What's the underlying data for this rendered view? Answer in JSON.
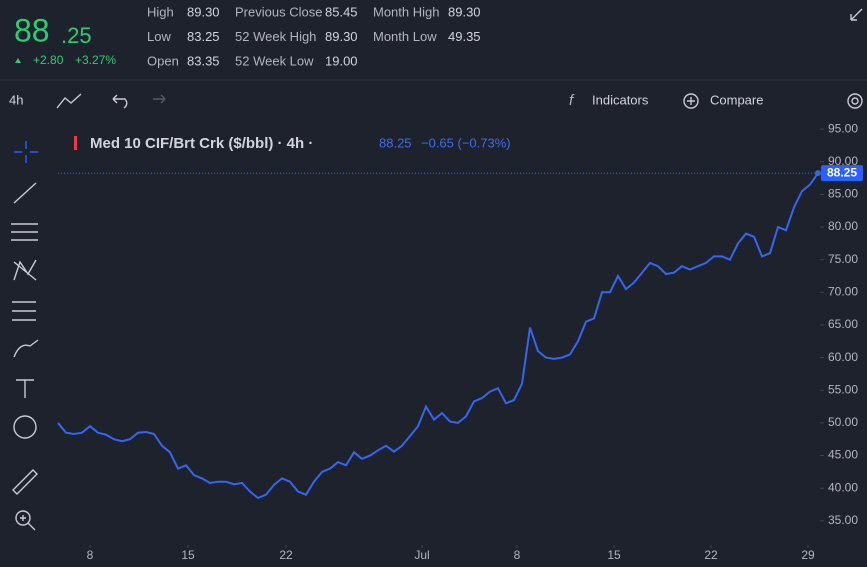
{
  "header": {
    "price_int": "88",
    "price_dec": ".25",
    "change": "+2.80",
    "change_pct": "+3.27%",
    "stats": [
      {
        "label": "High",
        "value": "89.30"
      },
      {
        "label": "Low",
        "value": "83.25"
      },
      {
        "label": "Open",
        "value": "83.35"
      },
      {
        "label": "Previous Close",
        "value": "85.45"
      },
      {
        "label": "52 Week High",
        "value": "89.30"
      },
      {
        "label": "52 Week Low",
        "value": "19.00"
      },
      {
        "label": "Month High",
        "value": "89.30"
      },
      {
        "label": "Month Low",
        "value": "49.35"
      }
    ]
  },
  "toolbar": {
    "interval": "4h",
    "indicators": "Indicators",
    "compare": "Compare"
  },
  "chart_data": {
    "type": "line",
    "title": "Med 10 CIF/Brt Crk ($/bbl) · 4h ·",
    "change_label": "−0.65 (−0.73%)",
    "color": "#3566f0",
    "values": [
      50,
      48.5,
      48.3,
      48.5,
      49.5,
      48.5,
      48.2,
      47.5,
      47.2,
      47.5,
      48.5,
      48.6,
      48.3,
      46.5,
      45.5,
      43,
      43.5,
      42,
      41.5,
      40.8,
      41,
      41,
      40.6,
      40.8,
      39.5,
      38.5,
      39,
      40.5,
      41.5,
      41,
      39.5,
      39,
      41,
      42.5,
      43,
      44,
      43.5,
      45.5,
      44.5,
      45,
      45.8,
      46.5,
      45.6,
      46.5,
      48,
      49.5,
      52.5,
      50.5,
      51.5,
      50.2,
      50,
      51,
      53.3,
      53.8,
      54.8,
      55.3,
      53,
      53.5,
      56,
      64.6,
      61,
      60,
      59.8,
      60,
      60.5,
      62.5,
      65.5,
      66,
      70,
      70,
      72.5,
      70.5,
      71.5,
      73,
      74.5,
      74,
      72.8,
      73,
      74,
      73.5,
      74,
      74.5,
      75.5,
      75.5,
      75,
      77.5,
      79,
      78.5,
      75.5,
      76,
      80,
      79.5,
      83,
      85.5,
      86.5,
      88.25
    ],
    "xlim": [
      0,
      95.25
    ],
    "xticks": [
      {
        "value": 4,
        "label": "8"
      },
      {
        "value": 16.25,
        "label": "15"
      },
      {
        "value": 28.5,
        "label": "22"
      },
      {
        "value": 45.5,
        "label": "Jul"
      },
      {
        "value": 57.375,
        "label": "8"
      },
      {
        "value": 69.5,
        "label": "15"
      },
      {
        "value": 81.625,
        "label": "22"
      },
      {
        "value": 93.75,
        "label": "29"
      }
    ],
    "ylim": [
      31.3,
      96.7
    ],
    "yticks": [
      {
        "value": 35,
        "label": "35.00"
      },
      {
        "value": 40,
        "label": "40.00"
      },
      {
        "value": 45,
        "label": "45.00"
      },
      {
        "value": 50,
        "label": "50.00"
      },
      {
        "value": 55,
        "label": "55.00"
      },
      {
        "value": 60,
        "label": "60.00"
      },
      {
        "value": 65,
        "label": "65.00"
      },
      {
        "value": 70,
        "label": "70.00"
      },
      {
        "value": 75,
        "label": "75.00"
      },
      {
        "value": 80,
        "label": "80.00"
      },
      {
        "value": 85,
        "label": "85.00"
      },
      {
        "value": 90,
        "label": "90.00"
      },
      {
        "value": 95,
        "label": "95.00"
      }
    ]
  }
}
